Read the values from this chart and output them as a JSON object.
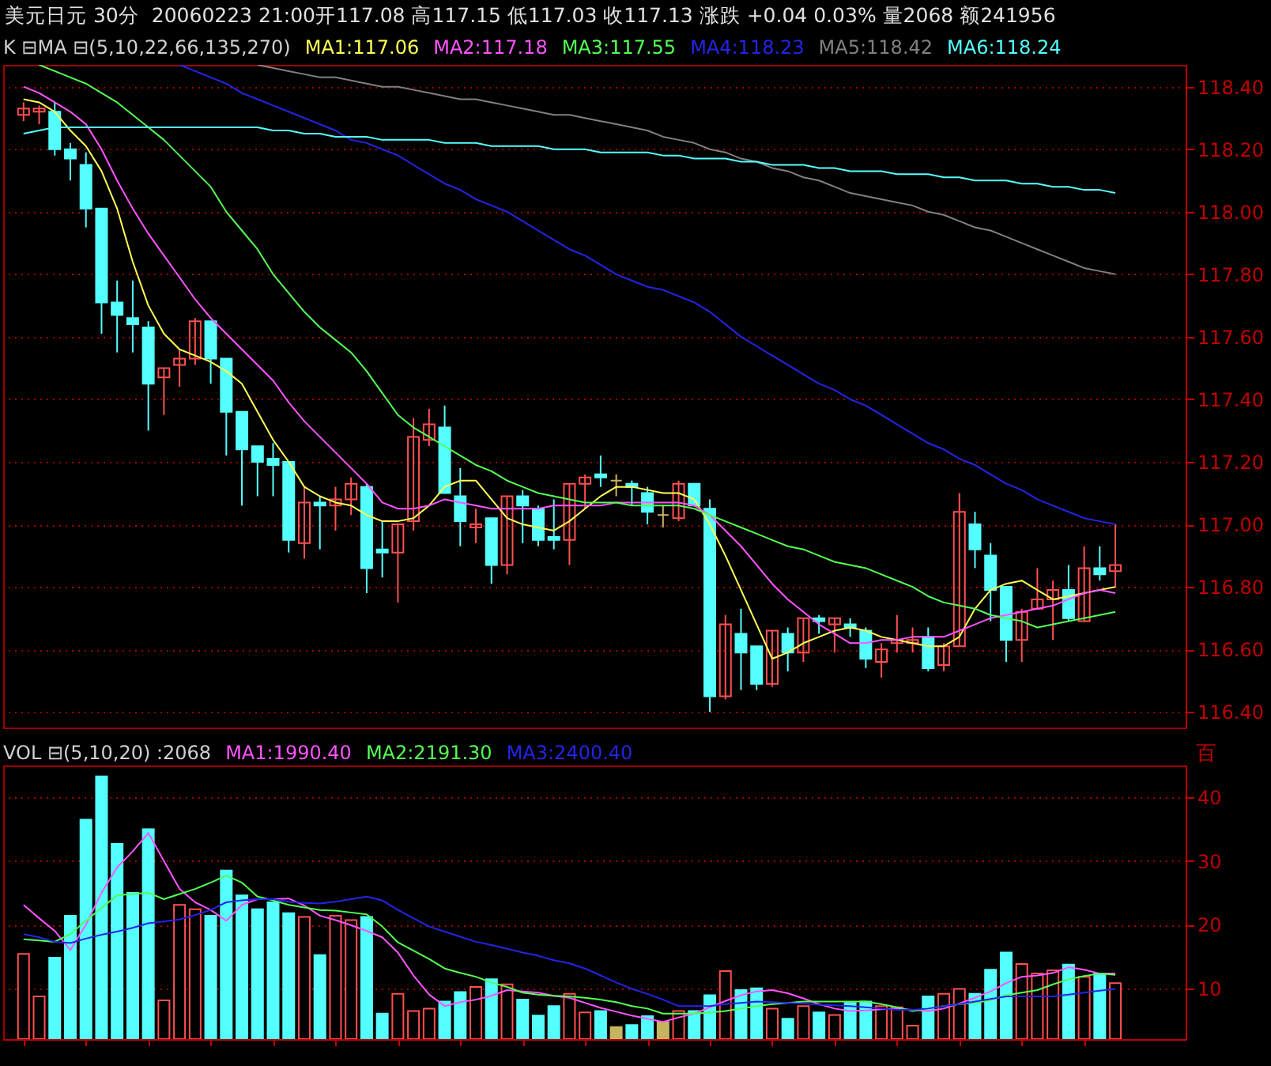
{
  "chart_data": [
    {
      "type": "candlestick",
      "title": "美元日元 30分",
      "subtitle": "20060223 21:00开117.08 高117.15 低117.03 收117.13 涨跌 +0.04 0.03% 量2068 额241956",
      "legend_title": "K ⊟MA ⊟(5,10,22,66,135,270)",
      "legend": "top",
      "grid": "y",
      "tick_labels": "y",
      "categories": [
        null,
        null,
        null,
        null,
        null,
        null,
        null,
        null,
        null,
        null,
        null,
        null,
        null,
        null,
        null,
        null,
        null,
        null,
        null,
        null,
        null,
        null,
        null,
        null,
        null,
        null,
        null,
        null,
        null,
        null,
        null,
        null,
        null,
        null,
        null,
        null,
        null,
        null,
        null,
        null,
        null,
        null,
        null,
        null,
        null,
        null,
        null,
        null,
        null,
        null,
        null,
        null,
        null,
        null,
        null,
        null,
        null,
        null,
        null,
        null,
        null,
        null,
        null,
        null,
        null,
        null,
        null,
        null,
        null,
        null,
        null
      ],
      "ylim": [
        116.35,
        118.47
      ],
      "yticks": [
        {
          "value": 118.4,
          "label": "118.40"
        },
        {
          "value": 118.2,
          "label": "118.20"
        },
        {
          "value": 118,
          "label": "118.00"
        },
        {
          "value": 117.8,
          "label": "117.80"
        },
        {
          "value": 117.6,
          "label": "117.60"
        },
        {
          "value": 117.4,
          "label": "117.40"
        },
        {
          "value": 117.2,
          "label": "117.20"
        },
        {
          "value": 117,
          "label": "117.00"
        },
        {
          "value": 116.8,
          "label": "116.80"
        },
        {
          "value": 116.6,
          "label": "116.60"
        },
        {
          "value": 116.4,
          "label": "116.40"
        }
      ],
      "ohlc": [
        [
          118.31,
          118.35,
          118.29,
          118.33
        ],
        [
          118.32,
          118.34,
          118.28,
          118.33
        ],
        [
          118.32,
          118.35,
          118.18,
          118.2
        ],
        [
          118.2,
          118.22,
          118.1,
          118.17
        ],
        [
          118.15,
          118.19,
          117.95,
          118.01
        ],
        [
          118.01,
          118.01,
          117.61,
          117.71
        ],
        [
          117.71,
          117.78,
          117.55,
          117.67
        ],
        [
          117.66,
          117.78,
          117.55,
          117.64
        ],
        [
          117.63,
          117.65,
          117.3,
          117.45
        ],
        [
          117.47,
          117.5,
          117.35,
          117.5
        ],
        [
          117.51,
          117.56,
          117.44,
          117.53
        ],
        [
          117.53,
          117.66,
          117.51,
          117.65
        ],
        [
          117.65,
          117.65,
          117.45,
          117.53
        ],
        [
          117.53,
          117.53,
          117.22,
          117.36
        ],
        [
          117.36,
          117.36,
          117.06,
          117.24
        ],
        [
          117.25,
          117.25,
          117.09,
          117.2
        ],
        [
          117.21,
          117.26,
          117.09,
          117.19
        ],
        [
          117.2,
          117.2,
          116.91,
          116.95
        ],
        [
          116.94,
          117.12,
          116.89,
          117.07
        ],
        [
          117.07,
          117.09,
          116.92,
          117.06
        ],
        [
          117.06,
          117.12,
          116.98,
          117.08
        ],
        [
          117.08,
          117.15,
          117.03,
          117.13
        ],
        [
          117.12,
          117.13,
          116.78,
          116.86
        ],
        [
          116.92,
          117.01,
          116.83,
          116.91
        ],
        [
          116.91,
          117.0,
          116.75,
          117.0
        ],
        [
          117.01,
          117.34,
          116.98,
          117.28
        ],
        [
          117.27,
          117.37,
          117.25,
          117.32
        ],
        [
          117.31,
          117.38,
          117.1,
          117.1
        ],
        [
          117.09,
          117.18,
          116.93,
          117.01
        ],
        [
          116.99,
          117.05,
          116.94,
          117.0
        ],
        [
          117.02,
          117.02,
          116.81,
          116.87
        ],
        [
          116.87,
          117.09,
          116.84,
          117.09
        ],
        [
          117.09,
          117.11,
          116.94,
          117.06
        ],
        [
          117.05,
          117.06,
          116.93,
          116.95
        ],
        [
          116.96,
          117.08,
          116.92,
          116.95
        ],
        [
          116.95,
          117.13,
          116.87,
          117.13
        ],
        [
          117.13,
          117.16,
          117.05,
          117.15
        ],
        [
          117.16,
          117.22,
          117.12,
          117.15
        ],
        [
          117.14,
          117.16,
          117.09,
          117.14
        ],
        [
          117.13,
          117.14,
          117.06,
          117.12
        ],
        [
          117.1,
          117.12,
          117.0,
          117.04
        ],
        [
          117.03,
          117.06,
          116.99,
          117.03
        ],
        [
          117.02,
          117.14,
          117.01,
          117.13
        ],
        [
          117.13,
          117.13,
          117.06,
          117.06
        ],
        [
          117.05,
          117.08,
          116.4,
          116.45
        ],
        [
          116.45,
          116.71,
          116.44,
          116.68
        ],
        [
          116.65,
          116.73,
          116.47,
          116.59
        ],
        [
          116.61,
          116.61,
          116.47,
          116.49
        ],
        [
          116.49,
          116.66,
          116.48,
          116.66
        ],
        [
          116.65,
          116.67,
          116.53,
          116.59
        ],
        [
          116.59,
          116.7,
          116.56,
          116.7
        ],
        [
          116.7,
          116.71,
          116.65,
          116.69
        ],
        [
          116.68,
          116.7,
          116.59,
          116.7
        ],
        [
          116.68,
          116.7,
          116.64,
          116.67
        ],
        [
          116.66,
          116.67,
          116.54,
          116.57
        ],
        [
          116.56,
          116.62,
          116.51,
          116.6
        ],
        [
          116.62,
          116.71,
          116.59,
          116.63
        ],
        [
          116.62,
          116.67,
          116.59,
          116.63
        ],
        [
          116.64,
          116.67,
          116.53,
          116.54
        ],
        [
          116.55,
          116.62,
          116.53,
          116.61
        ],
        [
          116.61,
          117.1,
          116.61,
          117.04
        ],
        [
          117.0,
          117.04,
          116.86,
          116.92
        ],
        [
          116.9,
          116.94,
          116.69,
          116.79
        ],
        [
          116.8,
          116.8,
          116.56,
          116.63
        ],
        [
          116.63,
          116.73,
          116.56,
          116.72
        ],
        [
          116.73,
          116.86,
          116.73,
          116.76
        ],
        [
          116.76,
          116.82,
          116.63,
          116.79
        ],
        [
          116.79,
          116.87,
          116.69,
          116.7
        ],
        [
          116.69,
          116.93,
          116.69,
          116.86
        ],
        [
          116.86,
          116.93,
          116.82,
          116.84
        ],
        [
          116.85,
          117.0,
          116.8,
          116.87
        ]
      ],
      "colors": [
        "#ff5050",
        "#ff5050",
        "#54ffff",
        "#54ffff",
        "#54ffff",
        "#54ffff",
        "#54ffff",
        "#54ffff",
        "#54ffff",
        "#ff5050",
        "#ff5050",
        "#ff5050",
        "#54ffff",
        "#54ffff",
        "#54ffff",
        "#54ffff",
        "#54ffff",
        "#54ffff",
        "#ff5050",
        "#54ffff",
        "#ff5050",
        "#ff5050",
        "#54ffff",
        "#54ffff",
        "#ff5050",
        "#ff5050",
        "#ff5050",
        "#54ffff",
        "#54ffff",
        "#ff5050",
        "#54ffff",
        "#ff5050",
        "#54ffff",
        "#54ffff",
        "#54ffff",
        "#ff5050",
        "#ff5050",
        "#54ffff",
        "#c8b460",
        "#54ffff",
        "#54ffff",
        "#c8b460",
        "#ff5050",
        "#54ffff",
        "#54ffff",
        "#ff5050",
        "#54ffff",
        "#54ffff",
        "#ff5050",
        "#54ffff",
        "#ff5050",
        "#54ffff",
        "#ff5050",
        "#54ffff",
        "#54ffff",
        "#ff5050",
        "#ff5050",
        "#ff5050",
        "#54ffff",
        "#ff5050",
        "#ff5050",
        "#54ffff",
        "#54ffff",
        "#54ffff",
        "#ff5050",
        "#ff5050",
        "#ff5050",
        "#54ffff",
        "#ff5050",
        "#54ffff",
        "#ff5050"
      ],
      "series": [
        {
          "name": "MA1:117.06",
          "type": "line",
          "color": "#ffff54",
          "values": [
            118.36,
            118.35,
            118.32,
            118.26,
            118.21,
            118.13,
            118.01,
            117.84,
            117.7,
            117.61,
            117.56,
            117.54,
            117.52,
            117.49,
            117.45,
            117.36,
            117.27,
            117.2,
            117.12,
            117.09,
            117.07,
            117.06,
            117.03,
            117.01,
            117.01,
            117.02,
            117.06,
            117.12,
            117.14,
            117.14,
            117.08,
            117.02,
            117.0,
            116.99,
            116.98,
            117.01,
            117.05,
            117.09,
            117.12,
            117.12,
            117.11,
            117.1,
            117.1,
            117.08,
            117.0,
            116.9,
            116.79,
            116.68,
            116.57,
            116.59,
            116.62,
            116.64,
            116.66,
            116.67,
            116.66,
            116.64,
            116.63,
            116.62,
            116.61,
            116.61,
            116.64,
            116.73,
            116.79,
            116.81,
            116.82,
            116.79,
            116.76,
            116.77,
            116.78,
            116.79,
            116.8
          ]
        },
        {
          "name": "MA2:117.18",
          "type": "line",
          "color": "#ff54ff",
          "values": [
            118.4,
            118.38,
            118.35,
            118.32,
            118.28,
            118.2,
            118.1,
            118.01,
            117.93,
            117.86,
            117.79,
            117.72,
            117.66,
            117.61,
            117.56,
            117.51,
            117.46,
            117.39,
            117.33,
            117.28,
            117.23,
            117.18,
            117.13,
            117.07,
            117.05,
            117.05,
            117.06,
            117.08,
            117.07,
            117.06,
            117.05,
            117.05,
            117.05,
            117.05,
            117.06,
            117.06,
            117.06,
            117.06,
            117.07,
            117.07,
            117.07,
            117.07,
            117.07,
            117.06,
            117.03,
            116.98,
            116.93,
            116.87,
            116.81,
            116.76,
            116.72,
            116.68,
            116.65,
            116.62,
            116.62,
            116.63,
            116.63,
            116.64,
            116.64,
            116.64,
            116.66,
            116.68,
            116.7,
            116.71,
            116.72,
            116.73,
            116.74,
            116.76,
            116.78,
            116.79,
            116.78
          ]
        },
        {
          "name": "MA3:117.55",
          "type": "line",
          "color": "#54ff54",
          "values": [
            null,
            118.47,
            118.45,
            118.43,
            118.41,
            118.38,
            118.35,
            118.31,
            118.27,
            118.23,
            118.18,
            118.13,
            118.08,
            118.0,
            117.94,
            117.88,
            117.8,
            117.74,
            117.68,
            117.63,
            117.59,
            117.55,
            117.49,
            117.42,
            117.35,
            117.31,
            117.28,
            117.25,
            117.22,
            117.19,
            117.17,
            117.14,
            117.12,
            117.1,
            117.09,
            117.08,
            117.07,
            117.07,
            117.07,
            117.06,
            117.06,
            117.06,
            117.06,
            117.05,
            117.03,
            117.01,
            116.99,
            116.97,
            116.95,
            116.93,
            116.92,
            116.9,
            116.88,
            116.87,
            116.86,
            116.84,
            116.82,
            116.8,
            116.77,
            116.75,
            116.74,
            116.73,
            116.71,
            116.7,
            116.69,
            116.67,
            116.68,
            116.69,
            116.7,
            116.71,
            116.72
          ]
        },
        {
          "name": "MA4:118.23",
          "type": "line",
          "color": "#2424e8",
          "values": [
            null,
            null,
            null,
            null,
            null,
            null,
            null,
            null,
            null,
            null,
            118.47,
            118.45,
            118.43,
            118.41,
            118.38,
            118.36,
            118.34,
            118.32,
            118.3,
            118.28,
            118.26,
            118.23,
            118.22,
            118.2,
            118.18,
            118.15,
            118.12,
            118.09,
            118.07,
            118.04,
            118.02,
            118.0,
            117.97,
            117.94,
            117.91,
            117.88,
            117.86,
            117.83,
            117.8,
            117.78,
            117.76,
            117.75,
            117.73,
            117.71,
            117.68,
            117.64,
            117.6,
            117.57,
            117.54,
            117.51,
            117.48,
            117.45,
            117.43,
            117.4,
            117.38,
            117.35,
            117.32,
            117.29,
            117.26,
            117.24,
            117.21,
            117.19,
            117.16,
            117.13,
            117.11,
            117.08,
            117.06,
            117.04,
            117.02,
            117.01,
            117.0
          ]
        },
        {
          "name": "MA5:118.42",
          "type": "line",
          "color": "#808080",
          "values": [
            null,
            null,
            null,
            null,
            null,
            null,
            null,
            null,
            null,
            null,
            null,
            null,
            null,
            null,
            null,
            118.47,
            118.46,
            118.45,
            118.44,
            118.43,
            118.43,
            118.42,
            118.41,
            118.4,
            118.4,
            118.39,
            118.38,
            118.37,
            118.36,
            118.36,
            118.35,
            118.34,
            118.33,
            118.32,
            118.31,
            118.31,
            118.3,
            118.29,
            118.28,
            118.27,
            118.26,
            118.24,
            118.23,
            118.22,
            118.2,
            118.19,
            118.17,
            118.16,
            118.14,
            118.13,
            118.11,
            118.1,
            118.08,
            118.06,
            118.05,
            118.04,
            118.03,
            118.02,
            118.0,
            117.99,
            117.97,
            117.95,
            117.94,
            117.92,
            117.9,
            117.88,
            117.86,
            117.84,
            117.82,
            117.81,
            117.8
          ]
        },
        {
          "name": "MA6:118.24",
          "type": "line",
          "color": "#54ffff",
          "values": [
            118.25,
            118.26,
            118.27,
            118.27,
            118.27,
            118.27,
            118.27,
            118.27,
            118.27,
            118.27,
            118.27,
            118.27,
            118.27,
            118.27,
            118.27,
            118.27,
            118.26,
            118.26,
            118.25,
            118.25,
            118.24,
            118.24,
            118.24,
            118.23,
            118.23,
            118.23,
            118.23,
            118.22,
            118.22,
            118.22,
            118.21,
            118.21,
            118.21,
            118.21,
            118.2,
            118.2,
            118.2,
            118.19,
            118.19,
            118.19,
            118.19,
            118.18,
            118.18,
            118.17,
            118.17,
            118.17,
            118.16,
            118.16,
            118.15,
            118.15,
            118.15,
            118.14,
            118.14,
            118.13,
            118.13,
            118.13,
            118.12,
            118.12,
            118.12,
            118.11,
            118.11,
            118.1,
            118.1,
            118.1,
            118.09,
            118.09,
            118.08,
            118.08,
            118.07,
            118.07,
            118.06
          ]
        }
      ]
    },
    {
      "type": "bar",
      "legend_title": "VOL ⊟(5,10,20) :2068",
      "ylabel": "百",
      "legend": "top left",
      "grid": "y",
      "tick_labels": "y",
      "categories": [
        null,
        null,
        null,
        null,
        null,
        null,
        null,
        null,
        null,
        null,
        null,
        null,
        null,
        null,
        null,
        null,
        null,
        null,
        null,
        null,
        null,
        null,
        null,
        null,
        null,
        null,
        null,
        null,
        null,
        null,
        null,
        null,
        null,
        null,
        null,
        null,
        null,
        null,
        null,
        null,
        null,
        null,
        null,
        null,
        null,
        null,
        null,
        null,
        null,
        null,
        null,
        null,
        null,
        null,
        null,
        null,
        null,
        null,
        null,
        null,
        null,
        null,
        null,
        null,
        null,
        null,
        null,
        null,
        null,
        null,
        null
      ],
      "ylim": [
        2,
        45
      ],
      "yticks": [
        10,
        20,
        30,
        40
      ],
      "series": [
        {
          "type": "bar",
          "colors": [
            "#ff5050",
            "#ff5050",
            "#54ffff",
            "#54ffff",
            "#54ffff",
            "#54ffff",
            "#54ffff",
            "#54ffff",
            "#54ffff",
            "#ff5050",
            "#ff5050",
            "#ff5050",
            "#54ffff",
            "#54ffff",
            "#54ffff",
            "#54ffff",
            "#54ffff",
            "#54ffff",
            "#ff5050",
            "#54ffff",
            "#ff5050",
            "#ff5050",
            "#54ffff",
            "#54ffff",
            "#ff5050",
            "#ff5050",
            "#ff5050",
            "#54ffff",
            "#54ffff",
            "#ff5050",
            "#54ffff",
            "#ff5050",
            "#54ffff",
            "#54ffff",
            "#54ffff",
            "#ff5050",
            "#ff5050",
            "#54ffff",
            "#c8b460",
            "#54ffff",
            "#54ffff",
            "#c8b460",
            "#ff5050",
            "#54ffff",
            "#54ffff",
            "#ff5050",
            "#54ffff",
            "#54ffff",
            "#ff5050",
            "#54ffff",
            "#ff5050",
            "#54ffff",
            "#ff5050",
            "#54ffff",
            "#54ffff",
            "#ff5050",
            "#ff5050",
            "#ff5050",
            "#54ffff",
            "#ff5050",
            "#ff5050",
            "#54ffff",
            "#54ffff",
            "#54ffff",
            "#ff5050",
            "#ff5050",
            "#ff5050",
            "#54ffff",
            "#ff5050",
            "#54ffff",
            "#ff5050"
          ],
          "values": [
            15.4,
            8.7,
            14.8,
            21.4,
            36.5,
            43.3,
            32.7,
            25.0,
            35.0,
            8.1,
            23.1,
            22.4,
            21.4,
            28.5,
            24.6,
            22.4,
            23.5,
            21.8,
            21.2,
            15.2,
            21.4,
            20.7,
            21.2,
            6.0,
            9.1,
            6.4,
            6.8,
            7.9,
            9.4,
            10.2,
            11.4,
            10.6,
            8.2,
            5.7,
            7.2,
            9.1,
            6.2,
            6.4,
            3.9,
            4.2,
            5.6,
            4.7,
            6.4,
            6.4,
            8.9,
            12.7,
            9.7,
            10.0,
            6.8,
            5.2,
            7.2,
            6.2,
            5.8,
            7.7,
            7.9,
            7.2,
            7.0,
            4.1,
            8.7,
            9.1,
            9.9,
            9.1,
            12.9,
            15.6,
            13.8,
            12.3,
            12.8,
            13.7,
            11.8,
            12.3,
            10.8
          ]
        },
        {
          "name": "MA1:1990.40",
          "type": "line",
          "color": "#ff54ff",
          "values": [
            23.1,
            21.0,
            19.0,
            16.0,
            20.0,
            25.0,
            29.0,
            31.5,
            34.4,
            30.0,
            25.6,
            23.5,
            22.3,
            20.6,
            23.1,
            24.0,
            24.0,
            24.1,
            23.0,
            21.4,
            20.7,
            19.9,
            19.0,
            18.0,
            15.6,
            12.0,
            9.0,
            7.2,
            7.8,
            8.2,
            8.8,
            9.7,
            9.5,
            9.3,
            8.8,
            8.5,
            7.7,
            6.9,
            6.3,
            5.7,
            5.2,
            4.7,
            5.4,
            6.0,
            7.0,
            8.0,
            8.9,
            9.5,
            9.7,
            9.2,
            8.4,
            7.5,
            6.8,
            6.4,
            6.5,
            6.7,
            6.8,
            6.6,
            6.4,
            6.8,
            7.6,
            8.5,
            9.5,
            10.8,
            11.8,
            12.0,
            12.4,
            13.3,
            12.9,
            12.3,
            12.3
          ]
        },
        {
          "name": "MA2:2191.30",
          "type": "line",
          "color": "#54ff54",
          "values": [
            17.7,
            17.5,
            17.3,
            18.5,
            20.6,
            22.6,
            24.6,
            24.8,
            25.0,
            24.0,
            24.8,
            25.6,
            26.6,
            27.7,
            26.6,
            24.4,
            23.8,
            23.1,
            22.7,
            22.3,
            22.2,
            21.9,
            21.6,
            19.7,
            17.2,
            15.9,
            14.6,
            13.1,
            12.4,
            11.8,
            10.9,
            10.2,
            9.3,
            9.0,
            8.8,
            8.7,
            8.5,
            8.2,
            7.8,
            7.2,
            6.8,
            6.0,
            6.0,
            6.0,
            6.2,
            6.4,
            6.8,
            7.2,
            7.5,
            7.7,
            7.9,
            7.9,
            7.9,
            7.9,
            7.9,
            7.5,
            7.0,
            6.4,
            6.8,
            7.2,
            7.5,
            7.7,
            8.1,
            8.9,
            9.3,
            9.7,
            10.6,
            11.4,
            11.9,
            12.3,
            12.1
          ]
        },
        {
          "name": "MA3:2400.40",
          "type": "line",
          "color": "#2424e8",
          "values": [
            18.5,
            18.0,
            17.3,
            17.1,
            17.8,
            18.4,
            18.9,
            19.5,
            20.2,
            20.5,
            20.8,
            21.5,
            22.3,
            23.5,
            23.8,
            24.0,
            24.0,
            23.6,
            23.4,
            23.3,
            23.6,
            24.0,
            24.4,
            23.8,
            22.3,
            21.0,
            19.7,
            18.9,
            18.1,
            17.3,
            16.8,
            16.2,
            15.6,
            15.1,
            14.4,
            13.9,
            13.1,
            12.0,
            10.9,
            9.9,
            9.1,
            8.2,
            7.2,
            7.2,
            7.2,
            7.5,
            7.7,
            7.9,
            7.8,
            7.7,
            7.6,
            7.4,
            7.3,
            7.2,
            7.0,
            6.8,
            6.6,
            6.6,
            6.8,
            7.2,
            7.5,
            7.9,
            8.3,
            8.7,
            8.7,
            8.7,
            8.7,
            9.0,
            9.3,
            9.6,
            9.9
          ]
        }
      ]
    }
  ]
}
